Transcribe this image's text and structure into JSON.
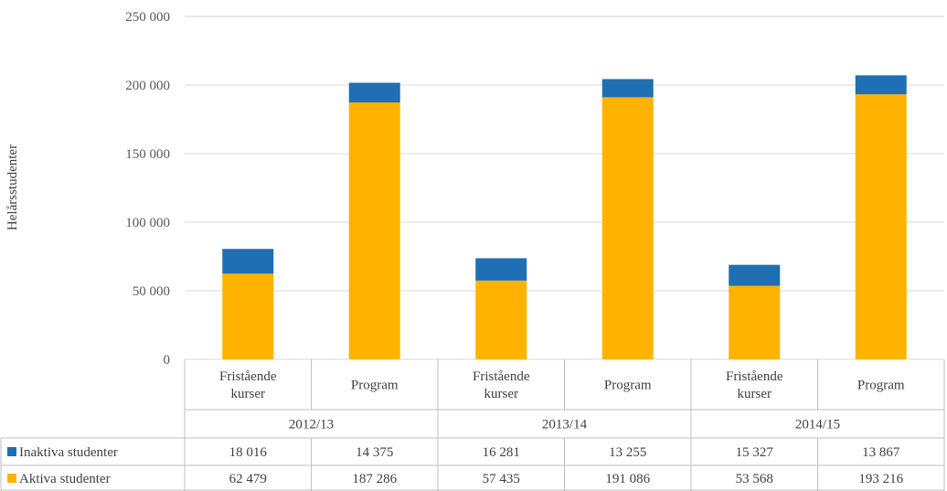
{
  "chart_data": {
    "type": "bar",
    "stacked": true,
    "ylabel": "Helårsstudenter",
    "ylim": [
      0,
      250000
    ],
    "yticks": [
      0,
      50000,
      100000,
      150000,
      200000,
      250000
    ],
    "ytick_labels": [
      "0",
      "50 000",
      "100 000",
      "150 000",
      "200 000",
      "250 000"
    ],
    "grid": true,
    "groups": [
      "2012/13",
      "2013/14",
      "2014/15"
    ],
    "categories": [
      {
        "group": "2012/13",
        "label_lines": [
          "Fristående",
          "kurser"
        ]
      },
      {
        "group": "2012/13",
        "label_lines": [
          "Program"
        ]
      },
      {
        "group": "2013/14",
        "label_lines": [
          "Fristående",
          "kurser"
        ]
      },
      {
        "group": "2013/14",
        "label_lines": [
          "Program"
        ]
      },
      {
        "group": "2014/15",
        "label_lines": [
          "Fristående",
          "kurser"
        ]
      },
      {
        "group": "2014/15",
        "label_lines": [
          "Program"
        ]
      }
    ],
    "series": [
      {
        "name": "Inaktiva studenter",
        "color": "#1f6fb4",
        "values": [
          18016,
          14375,
          16281,
          13255,
          15327,
          13867
        ],
        "value_labels": [
          "18 016",
          "14 375",
          "16 281",
          "13 255",
          "15 327",
          "13 867"
        ]
      },
      {
        "name": "Aktiva studenter",
        "color": "#ffb300",
        "values": [
          62479,
          187286,
          57435,
          191086,
          53568,
          193216
        ],
        "value_labels": [
          "62 479",
          "187 286",
          "57 435",
          "191 086",
          "53 568",
          "193 216"
        ]
      }
    ],
    "stack_order_bottom_to_top": [
      "Aktiva studenter",
      "Inaktiva studenter"
    ],
    "legend": "data-table"
  }
}
